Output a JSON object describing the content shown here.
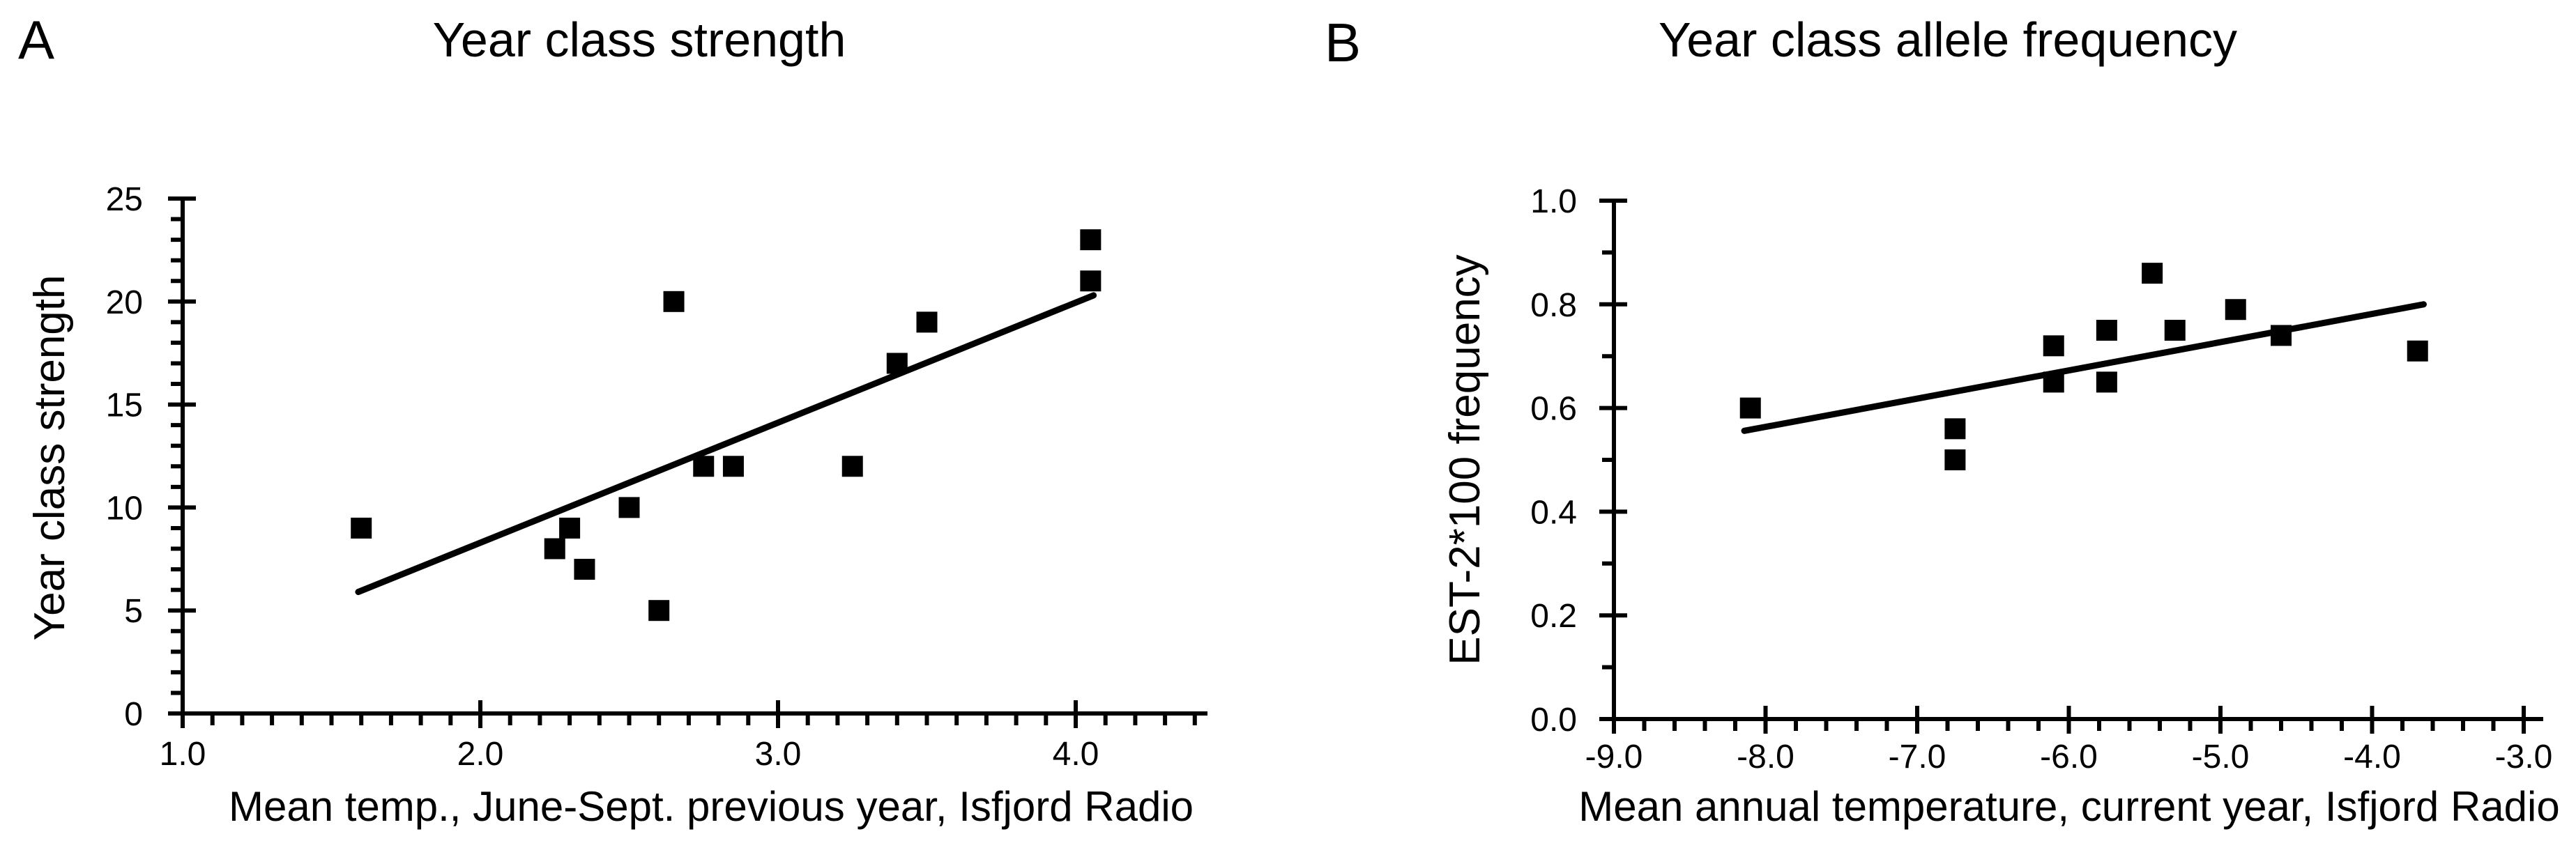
{
  "figure": {
    "background_color": "#ffffff",
    "ink_color": "#000000"
  },
  "chart_data": [
    {
      "type": "scatter",
      "panel_label": "A",
      "title": "Year class strength",
      "xlabel": "Mean temp., June-Sept. previous year, Isfjord Radio",
      "ylabel": "Year class strength",
      "xlim": [
        1.0,
        4.43
      ],
      "ylim": [
        0,
        25
      ],
      "grid": false,
      "legend": null,
      "marker": "filled-square",
      "x_major_ticks": [
        1.0,
        2.0,
        3.0,
        4.0
      ],
      "x_tick_labels": [
        "1.0",
        "2.0",
        "3.0",
        "4.0"
      ],
      "x_minor_ticks": [
        1.1,
        1.2,
        1.3,
        1.4,
        1.5,
        1.6,
        1.7,
        1.8,
        1.9,
        2.1,
        2.2,
        2.3,
        2.4,
        2.5,
        2.6,
        2.7,
        2.8,
        2.9,
        3.1,
        3.2,
        3.3,
        3.4,
        3.5,
        3.6,
        3.7,
        3.8,
        3.9,
        4.1,
        4.2,
        4.3,
        4.4
      ],
      "y_major_ticks": [
        0,
        5,
        10,
        15,
        20,
        25
      ],
      "y_tick_labels": [
        "0",
        "5",
        "10",
        "15",
        "20",
        "25"
      ],
      "y_minor_ticks": [
        1,
        2,
        3,
        4,
        6,
        7,
        8,
        9,
        11,
        12,
        13,
        14,
        16,
        17,
        18,
        19,
        21,
        22,
        23,
        24
      ],
      "points": [
        [
          1.6,
          9
        ],
        [
          2.25,
          8
        ],
        [
          2.3,
          9
        ],
        [
          2.35,
          7
        ],
        [
          2.5,
          10
        ],
        [
          2.6,
          5
        ],
        [
          2.65,
          20
        ],
        [
          2.75,
          12
        ],
        [
          2.85,
          12
        ],
        [
          3.25,
          12
        ],
        [
          3.4,
          17
        ],
        [
          3.5,
          19
        ],
        [
          4.05,
          21
        ],
        [
          4.05,
          23
        ]
      ],
      "trend_line": {
        "x1": 1.59,
        "y1": 5.9,
        "x2": 4.06,
        "y2": 20.3
      }
    },
    {
      "type": "scatter",
      "panel_label": "B",
      "title": "Year class allele frequency",
      "xlabel": "Mean annual temperature, current year, Isfjord Radio",
      "ylabel": "EST-2*100 frequency",
      "xlim": [
        -9.0,
        -2.88
      ],
      "ylim": [
        0.0,
        1.0
      ],
      "grid": false,
      "legend": null,
      "marker": "filled-square",
      "x_major_ticks": [
        -9.0,
        -8.0,
        -7.0,
        -6.0,
        -5.0,
        -4.0,
        -3.0
      ],
      "x_tick_labels": [
        "-9.0",
        "-8.0",
        "-7.0",
        "-6.0",
        "-5.0",
        "-4.0",
        "-3.0"
      ],
      "x_minor_ticks": [
        -8.8,
        -8.6,
        -8.4,
        -8.2,
        -7.8,
        -7.6,
        -7.4,
        -7.2,
        -6.8,
        -6.6,
        -6.4,
        -6.2,
        -5.8,
        -5.6,
        -5.4,
        -5.2,
        -4.8,
        -4.6,
        -4.4,
        -4.2,
        -3.8,
        -3.6,
        -3.4,
        -3.2
      ],
      "y_major_ticks": [
        0.0,
        0.2,
        0.4,
        0.6,
        0.8,
        1.0
      ],
      "y_tick_labels": [
        "0.0",
        "0.2",
        "0.4",
        "0.6",
        "0.8",
        "1.0"
      ],
      "y_minor_ticks": [
        0.1,
        0.3,
        0.5,
        0.7,
        0.9
      ],
      "points": [
        [
          -8.1,
          0.6
        ],
        [
          -6.75,
          0.56
        ],
        [
          -6.75,
          0.5
        ],
        [
          -6.1,
          0.72
        ],
        [
          -6.1,
          0.65
        ],
        [
          -5.75,
          0.75
        ],
        [
          -5.75,
          0.65
        ],
        [
          -5.45,
          0.86
        ],
        [
          -5.3,
          0.75
        ],
        [
          -4.9,
          0.79
        ],
        [
          -4.6,
          0.74
        ],
        [
          -3.7,
          0.71
        ]
      ],
      "trend_line": {
        "x1": -8.14,
        "y1": 0.556,
        "x2": -3.66,
        "y2": 0.8
      }
    }
  ]
}
